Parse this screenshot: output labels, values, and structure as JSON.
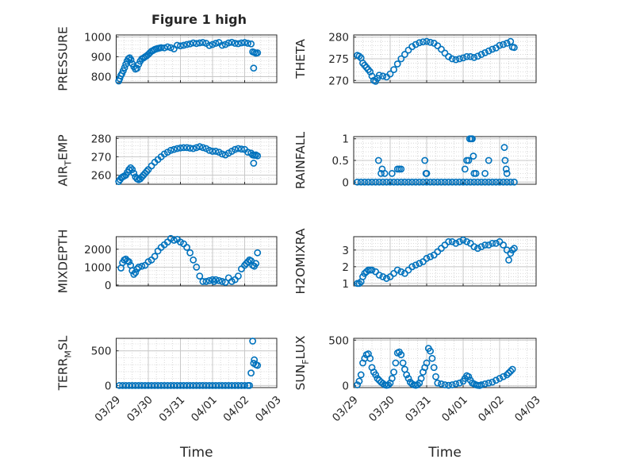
{
  "figure_title": "Figure 1 high",
  "chart_data": [
    {
      "type": "scatter",
      "id": "pressure",
      "title": "Figure 1 high",
      "ylabel": "PRESSURE",
      "ylabel_main": "PRESSURE",
      "ylabel_sub": "",
      "ylabel_tail": "",
      "xlabel": "",
      "ylim": [
        770,
        1010
      ],
      "yticks": [
        800,
        900,
        1000
      ],
      "grid": true,
      "x_tick_labels": [
        "03/29",
        "03/30",
        "03/31",
        "04/01",
        "04/02",
        "04/03"
      ],
      "x": [
        0.08,
        0.11,
        0.14,
        0.18,
        0.22,
        0.26,
        0.3,
        0.34,
        0.38,
        0.42,
        0.46,
        0.5,
        0.55,
        0.6,
        0.65,
        0.7,
        0.75,
        0.8,
        0.85,
        0.9,
        0.95,
        1.0,
        1.05,
        1.1,
        1.15,
        1.2,
        1.25,
        1.3,
        1.35,
        1.4,
        1.5,
        1.6,
        1.7,
        1.8,
        1.9,
        2.0,
        2.1,
        2.2,
        2.3,
        2.4,
        2.5,
        2.6,
        2.7,
        2.8,
        2.9,
        3.0,
        3.1,
        3.2,
        3.3,
        3.4,
        3.5,
        3.6,
        3.7,
        3.8,
        3.9,
        4.0,
        4.1,
        4.2,
        4.25,
        4.3,
        4.35,
        4.28,
        4.4
      ],
      "y": [
        778,
        790,
        805,
        815,
        830,
        845,
        862,
        878,
        890,
        895,
        885,
        865,
        850,
        838,
        842,
        862,
        878,
        890,
        894,
        900,
        905,
        912,
        920,
        928,
        932,
        937,
        940,
        942,
        944,
        946,
        945,
        950,
        946,
        940,
        958,
        955,
        958,
        962,
        965,
        970,
        967,
        970,
        972,
        968,
        957,
        962,
        968,
        972,
        958,
        962,
        970,
        973,
        968,
        966,
        970,
        972,
        968,
        965,
        925,
        922,
        918,
        843,
        920
      ]
    },
    {
      "type": "scatter",
      "id": "theta",
      "ylabel": "THETA",
      "ylabel_main": "THETA",
      "ylabel_sub": "",
      "ylabel_tail": "",
      "xlabel": "",
      "ylim": [
        269.5,
        280.5
      ],
      "yticks": [
        270,
        275,
        280
      ],
      "grid": true,
      "x_tick_labels": [
        "03/29",
        "03/30",
        "03/31",
        "04/01",
        "04/02",
        "04/03"
      ],
      "x": [
        0.1,
        0.15,
        0.2,
        0.25,
        0.3,
        0.35,
        0.4,
        0.45,
        0.5,
        0.55,
        0.6,
        0.65,
        0.7,
        0.8,
        0.9,
        1.0,
        1.1,
        1.2,
        1.3,
        1.4,
        1.5,
        1.6,
        1.7,
        1.8,
        1.9,
        2.0,
        2.1,
        2.2,
        2.3,
        2.4,
        2.5,
        2.6,
        2.7,
        2.8,
        2.9,
        3.0,
        3.1,
        3.2,
        3.3,
        3.4,
        3.5,
        3.6,
        3.7,
        3.8,
        3.9,
        4.0,
        4.1,
        4.2,
        4.3,
        4.35,
        4.4
      ],
      "y": [
        275.8,
        275.6,
        275.2,
        274,
        273.5,
        273,
        272.5,
        272,
        271,
        270,
        269.8,
        270.5,
        271.2,
        271,
        270.8,
        271.5,
        272.5,
        273.8,
        275,
        276,
        277,
        277.8,
        278.3,
        278.7,
        278.9,
        279,
        278.8,
        278.6,
        278,
        277.2,
        276.3,
        275.5,
        275,
        274.8,
        275,
        275.2,
        275.5,
        275.5,
        275.3,
        275.6,
        276,
        276.4,
        276.8,
        277.2,
        277.5,
        278.1,
        278.3,
        278.6,
        279,
        277.7,
        277.6
      ]
    },
    {
      "type": "scatter",
      "id": "air_temp",
      "ylabel": "AIR_TEMP",
      "ylabel_main": "AIR",
      "ylabel_sub": "T",
      "ylabel_tail": "EMP",
      "xlabel": "",
      "ylim": [
        255,
        281
      ],
      "yticks": [
        260,
        270,
        280
      ],
      "grid": true,
      "x_tick_labels": [
        "03/29",
        "03/30",
        "03/31",
        "04/01",
        "04/02",
        "04/03"
      ],
      "x": [
        0.08,
        0.12,
        0.16,
        0.2,
        0.25,
        0.3,
        0.35,
        0.4,
        0.45,
        0.5,
        0.55,
        0.6,
        0.65,
        0.7,
        0.75,
        0.8,
        0.85,
        0.9,
        0.95,
        1.0,
        1.1,
        1.2,
        1.3,
        1.4,
        1.5,
        1.6,
        1.7,
        1.8,
        1.9,
        2.0,
        2.1,
        2.2,
        2.3,
        2.4,
        2.5,
        2.6,
        2.7,
        2.8,
        2.9,
        3.0,
        3.1,
        3.2,
        3.3,
        3.4,
        3.5,
        3.6,
        3.7,
        3.8,
        3.9,
        4.0,
        4.1,
        4.2,
        4.25,
        4.3,
        4.35,
        4.28,
        4.4
      ],
      "y": [
        256.5,
        257.5,
        258.5,
        259,
        259.5,
        260,
        261.5,
        263,
        264,
        263,
        261,
        259,
        258,
        257.5,
        258,
        259,
        260,
        261,
        262,
        263,
        265,
        267,
        268.5,
        270,
        271.5,
        272.5,
        273.5,
        274,
        274.5,
        274.8,
        275,
        275,
        274.7,
        274.5,
        275,
        275.5,
        275,
        274.5,
        273.5,
        273,
        273,
        272.5,
        271.5,
        271,
        272,
        273,
        274,
        274.5,
        274.2,
        274,
        272.5,
        272,
        271,
        270.8,
        271,
        266.5,
        270.5
      ]
    },
    {
      "type": "scatter",
      "id": "rainfall",
      "ylabel": "RAINFALL",
      "ylabel_main": "RAINFALL",
      "ylabel_sub": "",
      "ylabel_tail": "",
      "xlabel": "",
      "ylim": [
        -0.05,
        1.05
      ],
      "yticks": [
        0,
        0.5,
        1
      ],
      "grid": true,
      "x_tick_labels": [
        "03/29",
        "03/30",
        "03/31",
        "04/01",
        "04/02",
        "04/03"
      ],
      "x": [
        0.1,
        0.2,
        0.3,
        0.4,
        0.5,
        0.6,
        0.7,
        0.8,
        0.9,
        1.0,
        1.1,
        1.2,
        1.3,
        1.4,
        1.5,
        1.6,
        1.7,
        1.8,
        1.9,
        2.0,
        2.1,
        2.2,
        2.3,
        2.4,
        2.5,
        2.6,
        2.7,
        2.8,
        2.9,
        3.0,
        3.1,
        3.2,
        3.3,
        3.4,
        3.5,
        3.6,
        3.7,
        3.8,
        3.9,
        4.0,
        4.1,
        4.2,
        4.3,
        4.4,
        0.68,
        0.75,
        0.78,
        0.85,
        1.05,
        1.2,
        1.25,
        1.3,
        1.95,
        2.0,
        1.98,
        3.05,
        3.1,
        3.15,
        3.18,
        3.22,
        3.25,
        3.28,
        3.3,
        3.35,
        3.6,
        3.7,
        4.13,
        4.15,
        4.18,
        4.2
      ],
      "y": [
        0,
        0,
        0,
        0,
        0,
        0,
        0,
        0,
        0,
        0,
        0,
        0,
        0,
        0,
        0,
        0,
        0,
        0,
        0,
        0,
        0,
        0,
        0,
        0,
        0,
        0,
        0,
        0,
        0,
        0,
        0,
        0,
        0,
        0,
        0,
        0,
        0,
        0,
        0,
        0,
        0,
        0,
        0,
        0,
        0.5,
        0.2,
        0.3,
        0.2,
        0.2,
        0.3,
        0.3,
        0.3,
        0.5,
        0.2,
        0.2,
        0.3,
        0.5,
        0.5,
        1,
        1,
        1,
        0.6,
        0.2,
        0.2,
        0.2,
        0.5,
        0.8,
        0.5,
        0.3,
        0.2
      ]
    },
    {
      "type": "scatter",
      "id": "mixdepth",
      "ylabel": "MIXDEPTH",
      "ylabel_main": "MIXDEPTH",
      "ylabel_sub": "",
      "ylabel_tail": "",
      "xlabel": "",
      "ylim": [
        -50,
        2700
      ],
      "yticks": [
        0,
        1000,
        2000
      ],
      "grid": true,
      "x_tick_labels": [
        "03/29",
        "03/30",
        "03/31",
        "04/01",
        "04/02",
        "04/03"
      ],
      "x": [
        0.15,
        0.2,
        0.25,
        0.3,
        0.35,
        0.4,
        0.45,
        0.5,
        0.55,
        0.6,
        0.65,
        0.7,
        0.8,
        0.9,
        1.0,
        1.1,
        1.2,
        1.3,
        1.4,
        1.5,
        1.6,
        1.7,
        1.8,
        1.9,
        2.0,
        2.1,
        2.2,
        2.3,
        2.4,
        2.5,
        2.6,
        2.7,
        2.8,
        2.9,
        3.0,
        3.05,
        3.1,
        3.2,
        3.3,
        3.4,
        3.5,
        3.6,
        3.7,
        3.8,
        3.9,
        4.0,
        4.05,
        4.1,
        4.15,
        4.2,
        4.25,
        4.3,
        4.35,
        4.4
      ],
      "y": [
        950,
        1250,
        1400,
        1450,
        1350,
        1300,
        1100,
        800,
        600,
        700,
        900,
        1000,
        1050,
        1100,
        1300,
        1400,
        1600,
        1900,
        2100,
        2250,
        2400,
        2600,
        2500,
        2550,
        2400,
        2300,
        2100,
        1800,
        1400,
        1000,
        500,
        200,
        200,
        250,
        300,
        200,
        300,
        250,
        200,
        150,
        400,
        200,
        300,
        500,
        900,
        1100,
        1200,
        1300,
        1400,
        1350,
        1100,
        1050,
        1200,
        1800
      ]
    },
    {
      "type": "scatter",
      "id": "h2omixra",
      "ylabel": "H2OMIXRA",
      "ylabel_main": "H2OMIXRA",
      "ylabel_sub": "",
      "ylabel_tail": "",
      "xlabel": "",
      "ylim": [
        0.85,
        3.8
      ],
      "yticks": [
        1,
        2,
        3
      ],
      "grid": true,
      "x_tick_labels": [
        "03/29",
        "03/30",
        "03/31",
        "04/01",
        "04/02",
        "04/03"
      ],
      "x": [
        0.1,
        0.15,
        0.2,
        0.25,
        0.3,
        0.35,
        0.4,
        0.45,
        0.5,
        0.6,
        0.7,
        0.8,
        0.9,
        1.0,
        1.1,
        1.2,
        1.3,
        1.4,
        1.5,
        1.6,
        1.7,
        1.8,
        1.9,
        2.0,
        2.1,
        2.2,
        2.3,
        2.4,
        2.5,
        2.6,
        2.7,
        2.8,
        2.9,
        3.0,
        3.1,
        3.2,
        3.3,
        3.4,
        3.5,
        3.6,
        3.7,
        3.8,
        3.9,
        4.0,
        4.1,
        4.2,
        4.25,
        4.3,
        4.35,
        4.4
      ],
      "y": [
        1.0,
        1.0,
        1.1,
        1.4,
        1.6,
        1.7,
        1.8,
        1.8,
        1.8,
        1.7,
        1.5,
        1.4,
        1.3,
        1.4,
        1.6,
        1.8,
        1.7,
        1.6,
        1.8,
        2.0,
        2.1,
        2.2,
        2.3,
        2.5,
        2.6,
        2.7,
        2.9,
        3.1,
        3.3,
        3.5,
        3.5,
        3.4,
        3.5,
        3.6,
        3.5,
        3.4,
        3.2,
        3.1,
        3.2,
        3.3,
        3.3,
        3.4,
        3.4,
        3.5,
        3.3,
        3.0,
        2.4,
        2.8,
        3.0,
        3.1
      ]
    },
    {
      "type": "scatter",
      "id": "terr_msl",
      "ylabel": "TERR_MSL",
      "ylabel_main": "TERR",
      "ylabel_sub": "M",
      "ylabel_tail": "SL",
      "xlabel": "Time",
      "ylim": [
        -30,
        680
      ],
      "yticks": [
        0,
        500
      ],
      "grid": true,
      "x_tick_labels": [
        "03/29",
        "03/30",
        "03/31",
        "04/01",
        "04/02",
        "04/03"
      ],
      "x": [
        0.1,
        0.2,
        0.3,
        0.4,
        0.5,
        0.6,
        0.7,
        0.8,
        0.9,
        1.0,
        1.1,
        1.2,
        1.3,
        1.4,
        1.5,
        1.6,
        1.7,
        1.8,
        1.9,
        2.0,
        2.1,
        2.2,
        2.3,
        2.4,
        2.5,
        2.6,
        2.7,
        2.8,
        2.9,
        3.0,
        3.1,
        3.2,
        3.3,
        3.4,
        3.5,
        3.6,
        3.7,
        3.8,
        3.9,
        4.0,
        4.1,
        4.15,
        4.2,
        4.25,
        4.28,
        4.3,
        4.35,
        4.4
      ],
      "y": [
        0,
        0,
        0,
        0,
        0,
        0,
        0,
        0,
        0,
        0,
        0,
        0,
        0,
        0,
        0,
        0,
        0,
        0,
        0,
        0,
        0,
        0,
        0,
        0,
        0,
        0,
        0,
        0,
        0,
        0,
        0,
        0,
        0,
        0,
        0,
        0,
        0,
        0,
        0,
        0,
        0,
        0,
        180,
        640,
        320,
        370,
        300,
        290
      ]
    },
    {
      "type": "scatter",
      "id": "sun_flux",
      "ylabel": "SUN_FLUX",
      "ylabel_main": "SUN",
      "ylabel_sub": "F",
      "ylabel_tail": "LUX",
      "xlabel": "Time",
      "ylim": [
        -20,
        520
      ],
      "yticks": [
        0,
        500
      ],
      "grid": true,
      "x_tick_labels": [
        "03/29",
        "03/30",
        "03/31",
        "04/01",
        "04/02",
        "04/03"
      ],
      "x": [
        0.1,
        0.15,
        0.2,
        0.25,
        0.3,
        0.35,
        0.4,
        0.45,
        0.5,
        0.55,
        0.6,
        0.65,
        0.7,
        0.75,
        0.8,
        0.85,
        0.9,
        0.95,
        1.0,
        1.05,
        1.1,
        1.15,
        1.2,
        1.25,
        1.3,
        1.35,
        1.4,
        1.45,
        1.5,
        1.55,
        1.6,
        1.65,
        1.7,
        1.75,
        1.8,
        1.85,
        1.9,
        1.95,
        2.0,
        2.05,
        2.1,
        2.15,
        2.2,
        2.25,
        2.3,
        2.4,
        2.5,
        2.6,
        2.7,
        2.8,
        2.9,
        3.0,
        3.05,
        3.1,
        3.15,
        3.2,
        3.25,
        3.3,
        3.35,
        3.4,
        3.45,
        3.5,
        3.6,
        3.7,
        3.8,
        3.9,
        4.0,
        4.1,
        4.2,
        4.25,
        4.3,
        4.35
      ],
      "y": [
        10,
        50,
        120,
        250,
        300,
        340,
        350,
        300,
        200,
        150,
        120,
        80,
        60,
        40,
        25,
        10,
        5,
        8,
        30,
        80,
        150,
        250,
        360,
        370,
        340,
        250,
        180,
        120,
        80,
        40,
        20,
        10,
        5,
        10,
        30,
        80,
        150,
        200,
        250,
        410,
        380,
        300,
        200,
        100,
        30,
        20,
        10,
        5,
        10,
        20,
        30,
        50,
        80,
        110,
        100,
        60,
        30,
        20,
        10,
        5,
        3,
        10,
        20,
        30,
        40,
        60,
        80,
        100,
        120,
        140,
        160,
        180
      ]
    }
  ]
}
